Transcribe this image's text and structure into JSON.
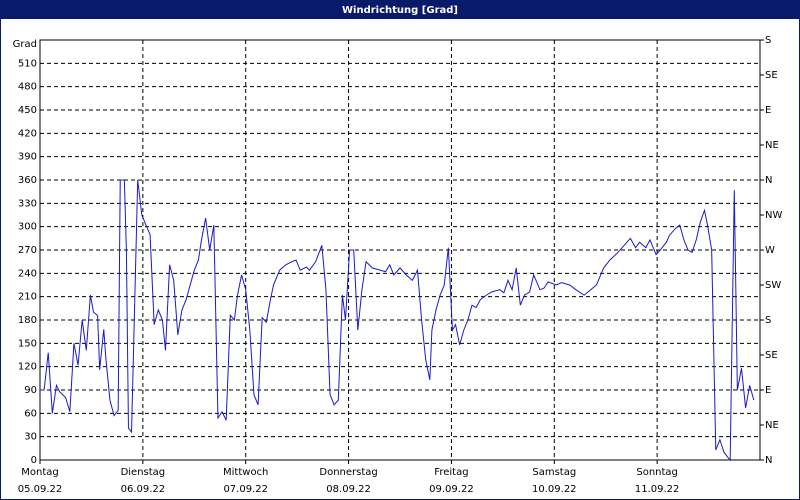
{
  "chart_data": {
    "type": "line",
    "title": "Windrichtung [Grad]",
    "ylabel": "Grad",
    "color": "#1a1acc",
    "grid": true,
    "xlim": [
      0,
      7
    ],
    "xticks": [
      {
        "value": 0,
        "label": "Montag"
      },
      {
        "value": 1,
        "label": "Dienstag"
      },
      {
        "value": 2,
        "label": "Mittwoch"
      },
      {
        "value": 3,
        "label": "Donnerstag"
      },
      {
        "value": 4,
        "label": "Freitag"
      },
      {
        "value": 5,
        "label": "Samstag"
      },
      {
        "value": 6,
        "label": "Sonntag"
      }
    ],
    "xtick_dates": [
      "05.09.22",
      "06.09.22",
      "07.09.22",
      "08.09.22",
      "09.09.22",
      "10.09.22",
      "11.09.22"
    ],
    "ylim": [
      0,
      540
    ],
    "yticks": [
      0,
      30,
      60,
      90,
      120,
      150,
      180,
      210,
      240,
      270,
      300,
      330,
      360,
      390,
      420,
      450,
      480,
      510
    ],
    "y2lim": [
      0,
      540
    ],
    "y2ticks": [
      {
        "value": 0,
        "label": "N"
      },
      {
        "value": 45,
        "label": "NE"
      },
      {
        "value": 90,
        "label": "E"
      },
      {
        "value": 135,
        "label": "SE"
      },
      {
        "value": 180,
        "label": "S"
      },
      {
        "value": 225,
        "label": "SW"
      },
      {
        "value": 270,
        "label": "W"
      },
      {
        "value": 315,
        "label": "NW"
      },
      {
        "value": 360,
        "label": "N"
      },
      {
        "value": 405,
        "label": "NE"
      },
      {
        "value": 450,
        "label": "E"
      },
      {
        "value": 495,
        "label": "SE"
      },
      {
        "value": 540,
        "label": "S"
      }
    ],
    "x": [
      0,
      0.04,
      0.08,
      0.12,
      0.16,
      0.19,
      0.25,
      0.29,
      0.33,
      0.37,
      0.41,
      0.45,
      0.49,
      0.52,
      0.56,
      0.58,
      0.62,
      0.64,
      0.68,
      0.72,
      0.76,
      0.78,
      0.82,
      0.84,
      0.86,
      0.89,
      0.95,
      0.99,
      1.03,
      1.07,
      1.11,
      1.15,
      1.19,
      1.22,
      1.26,
      1.3,
      1.34,
      1.38,
      1.42,
      1.46,
      1.5,
      1.54,
      1.57,
      1.61,
      1.65,
      1.69,
      1.73,
      1.77,
      1.81,
      1.85,
      1.89,
      1.92,
      1.96,
      2.0,
      2.04,
      2.08,
      2.12,
      2.16,
      2.2,
      2.24,
      2.27,
      2.33,
      2.39,
      2.45,
      2.49,
      2.53,
      2.59,
      2.62,
      2.68,
      2.74,
      2.78,
      2.82,
      2.86,
      2.9,
      2.94,
      2.97,
      3.01,
      3.05,
      3.09,
      3.13,
      3.17,
      3.23,
      3.31,
      3.36,
      3.4,
      3.44,
      3.5,
      3.56,
      3.62,
      3.67,
      3.71,
      3.75,
      3.79,
      3.81,
      3.85,
      3.89,
      3.93,
      3.97,
      4.01,
      4.04,
      4.08,
      4.12,
      4.16,
      4.2,
      4.24,
      4.28,
      4.34,
      4.39,
      4.47,
      4.51,
      4.55,
      4.59,
      4.63,
      4.67,
      4.71,
      4.76,
      4.8,
      4.86,
      4.9,
      4.94,
      5.02,
      5.07,
      5.15,
      5.21,
      5.29,
      5.41,
      5.48,
      5.54,
      5.62,
      5.68,
      5.74,
      5.79,
      5.83,
      5.89,
      5.93,
      5.99,
      6.03,
      6.09,
      6.12,
      6.18,
      6.22,
      6.26,
      6.3,
      6.34,
      6.38,
      6.42,
      6.46,
      6.49,
      6.53,
      6.57,
      6.61,
      6.65,
      6.69,
      6.71,
      6.75,
      6.78,
      6.82,
      6.86,
      6.9,
      6.94
    ],
    "values": [
      90,
      90,
      138,
      60,
      96,
      88,
      80,
      62,
      150,
      122,
      180,
      141,
      212,
      190,
      186,
      116,
      168,
      131,
      77,
      57,
      64,
      360,
      360,
      270,
      41,
      36,
      360,
      315,
      302,
      290,
      174,
      193,
      180,
      141,
      251,
      231,
      161,
      193,
      206,
      225,
      244,
      257,
      283,
      311,
      270,
      302,
      54,
      62,
      51,
      186,
      180,
      212,
      238,
      219,
      167,
      84,
      71,
      183,
      177,
      206,
      225,
      244,
      251,
      255,
      257,
      244,
      248,
      244,
      255,
      276,
      219,
      84,
      71,
      77,
      212,
      180,
      270,
      270,
      167,
      219,
      255,
      247,
      244,
      242,
      251,
      238,
      247,
      238,
      231,
      244,
      180,
      129,
      103,
      167,
      193,
      212,
      225,
      273,
      167,
      174,
      148,
      167,
      180,
      199,
      196,
      206,
      212,
      216,
      219,
      215,
      231,
      219,
      247,
      199,
      212,
      216,
      238,
      219,
      221,
      229,
      225,
      228,
      225,
      219,
      212,
      225,
      247,
      257,
      267,
      276,
      285,
      273,
      280,
      273,
      283,
      264,
      270,
      280,
      289,
      298,
      302,
      283,
      270,
      267,
      283,
      306,
      321,
      302,
      270,
      13,
      26,
      10,
      3,
      0,
      347,
      90,
      118,
      67,
      96,
      77
    ]
  }
}
